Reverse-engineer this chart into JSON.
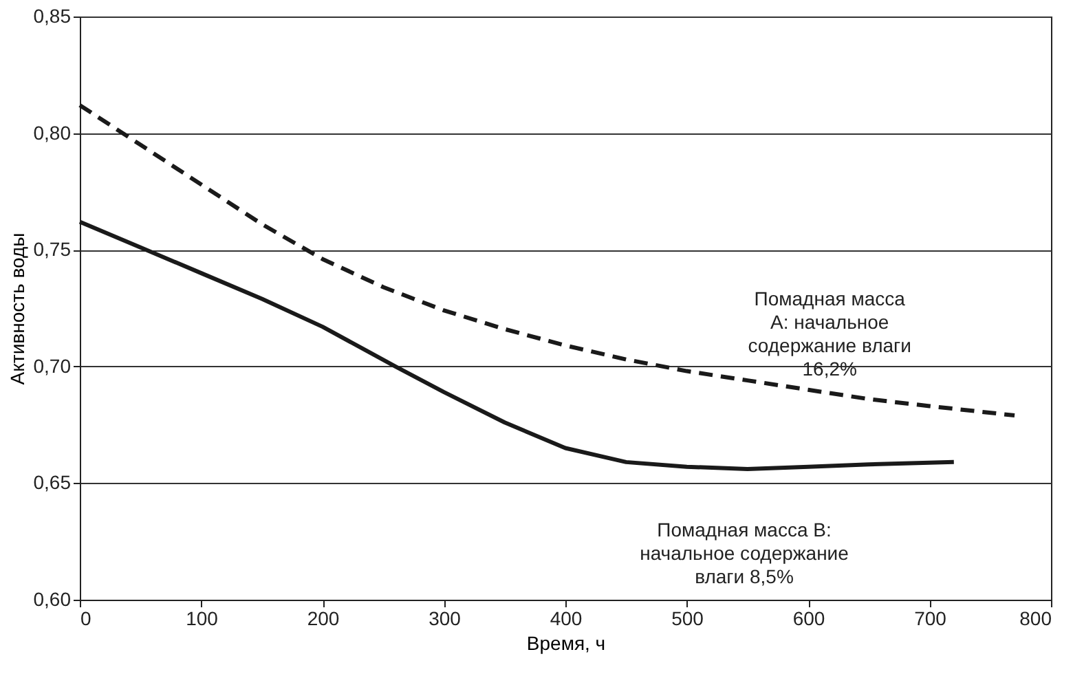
{
  "chart_data": {
    "type": "line",
    "xlabel": "Время, ч",
    "ylabel": "Активность воды",
    "series": [
      {
        "color": "#1a1a1a",
        "line_style": "dashed",
        "x": [
          0,
          50,
          100,
          150,
          200,
          250,
          300,
          350,
          400,
          450,
          500,
          550,
          600,
          650,
          700,
          770
        ],
        "values": [
          0.812,
          0.795,
          0.778,
          0.761,
          0.746,
          0.734,
          0.724,
          0.716,
          0.709,
          0.703,
          0.698,
          0.694,
          0.69,
          0.686,
          0.683,
          0.679
        ]
      },
      {
        "color": "#1a1a1a",
        "line_style": "solid",
        "x": [
          0,
          50,
          100,
          150,
          200,
          260,
          300,
          350,
          400,
          450,
          500,
          550,
          600,
          650,
          720
        ],
        "values": [
          0.762,
          0.751,
          0.74,
          0.729,
          0.717,
          0.7,
          0.689,
          0.676,
          0.665,
          0.659,
          0.657,
          0.656,
          0.657,
          0.658,
          0.659
        ]
      }
    ],
    "xlim": [
      0,
      800
    ],
    "xticks": [
      0,
      100,
      200,
      300,
      400,
      500,
      600,
      700,
      800
    ],
    "ylim": [
      0.6,
      0.85
    ],
    "yticks": [
      {
        "value": 0.6,
        "label": "0,60"
      },
      {
        "value": 0.65,
        "label": "0,65"
      },
      {
        "value": 0.7,
        "label": "0,70"
      },
      {
        "value": 0.75,
        "label": "0,75"
      },
      {
        "value": 0.8,
        "label": "0,80"
      },
      {
        "value": 0.85,
        "label": "0,85"
      }
    ],
    "grid": "y",
    "marker": "none",
    "annotations": [
      "Помадная масса\nA: начальное\nсодержание влаги\n16,2%",
      "Помадная масса B:\nначальное содержание\nвлаги 8,5%"
    ]
  }
}
